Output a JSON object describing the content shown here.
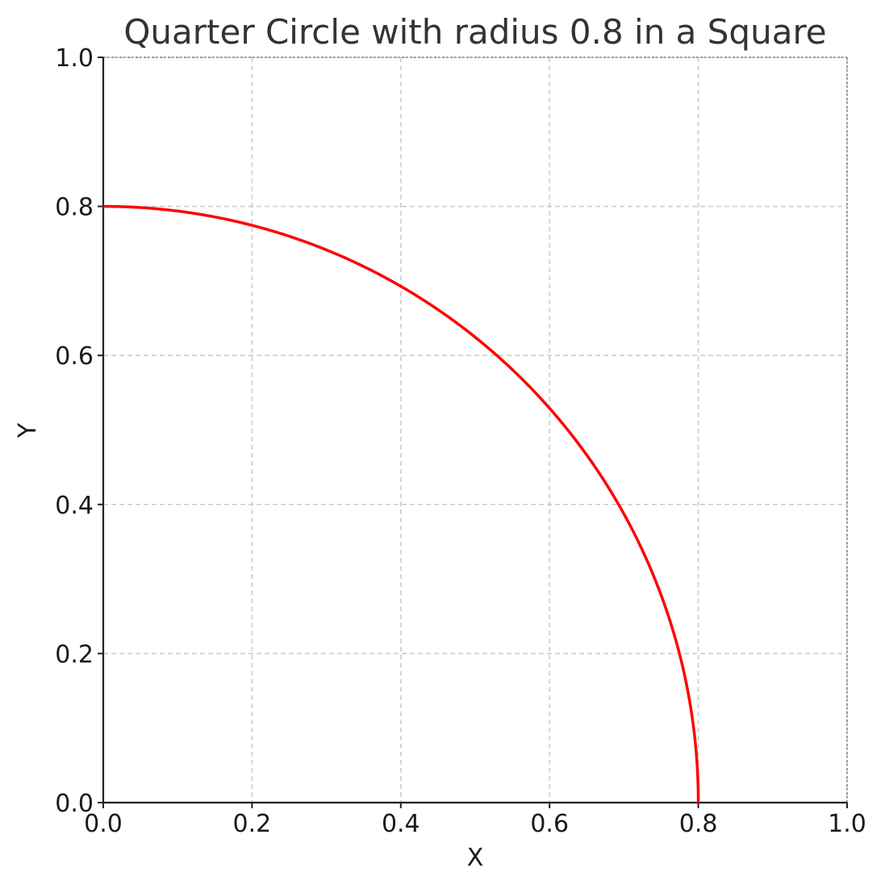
{
  "chart_data": {
    "type": "line",
    "title": "Quarter Circle with radius 0.8 in a Square",
    "xlabel": "X",
    "ylabel": "Y",
    "xlim": [
      0.0,
      1.0
    ],
    "ylim": [
      0.0,
      1.0
    ],
    "grid": true,
    "x_ticks": [
      "0.0",
      "0.2",
      "0.4",
      "0.6",
      "0.8",
      "1.0"
    ],
    "y_ticks": [
      "0.0",
      "0.2",
      "0.4",
      "0.6",
      "0.8",
      "1.0"
    ],
    "series": [
      {
        "radius": 0.8,
        "color": "#ff0000",
        "x": [
          0.0,
          0.1,
          0.2,
          0.3,
          0.4,
          0.5,
          0.6,
          0.7,
          0.75,
          0.8
        ],
        "y": [
          0.8,
          0.7937,
          0.7746,
          0.7416,
          0.6928,
          0.6245,
          0.5292,
          0.3873,
          0.2784,
          0.0
        ]
      }
    ]
  }
}
